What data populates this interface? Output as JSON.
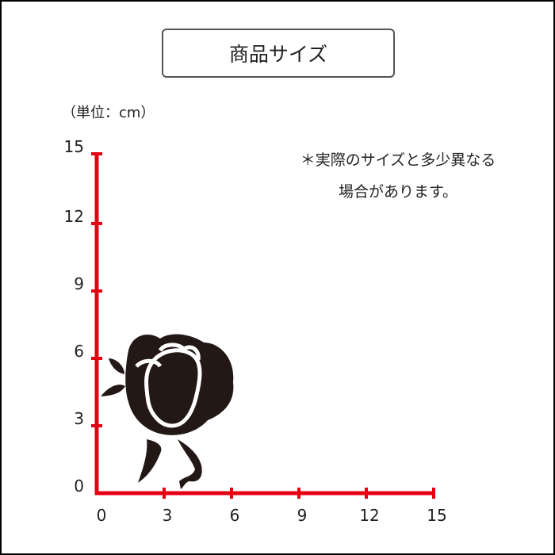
{
  "title": "商品サイズ",
  "unit_label": "（単位：cm）",
  "note_lines": [
    "＊実際のサイズと多少異なる",
    "場合があります。"
  ],
  "axis_color": "#e60012",
  "silhouette_color": "#231815",
  "x_ticks": [
    "0",
    "3",
    "6",
    "9",
    "12",
    "15"
  ],
  "y_ticks": [
    "0",
    "3",
    "6",
    "9",
    "12",
    "15"
  ],
  "chart_data": {
    "type": "diagram",
    "x_range": [
      0,
      15
    ],
    "y_range": [
      0,
      15
    ],
    "object": "rose silhouette",
    "approx_size_cm": {
      "width": 6,
      "height": 7
    }
  }
}
